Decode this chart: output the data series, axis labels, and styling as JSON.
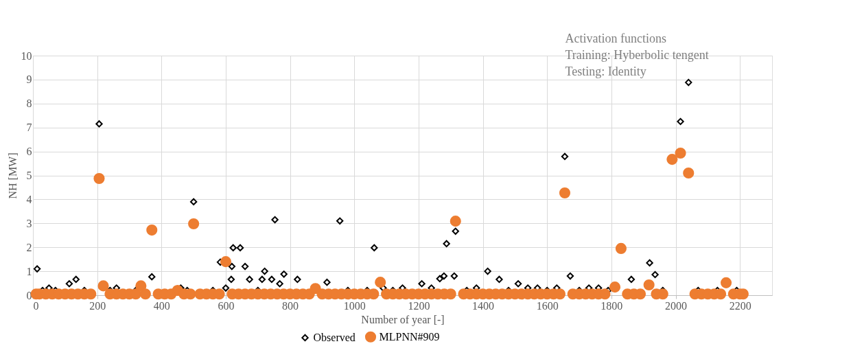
{
  "chart_data": {
    "type": "scatter",
    "xlabel": "Number of year [-]",
    "ylabel": "NH [MW]",
    "annotations": [
      "Activation functions",
      "Training: Hyberbolic tengent",
      "Testing: Identity"
    ],
    "xlim": [
      0,
      2300
    ],
    "xticks": [
      0,
      200,
      400,
      600,
      800,
      1000,
      1200,
      1400,
      1600,
      1800,
      2000,
      2200
    ],
    "ylim": [
      0,
      10
    ],
    "yticks": [
      0,
      1,
      2,
      3,
      4,
      5,
      6,
      7,
      8,
      9,
      10
    ],
    "grid": true,
    "legend": "bottom",
    "series": [
      {
        "name": "Observed",
        "color": "#000000",
        "marker": "diamond",
        "x": [
          13,
          30,
          50,
          70,
          113,
          134,
          160,
          206,
          240,
          260,
          320,
          370,
          460,
          480,
          500,
          560,
          583,
          600,
          617,
          619,
          623,
          645,
          660,
          674,
          700,
          713,
          721,
          743,
          753,
          768,
          781,
          823,
          915,
          955,
          980,
          1040,
          1062,
          1090,
          1120,
          1150,
          1210,
          1240,
          1266,
          1279,
          1287,
          1311,
          1315,
          1350,
          1380,
          1415,
          1451,
          1480,
          1510,
          1540,
          1570,
          1600,
          1630,
          1655,
          1672,
          1700,
          1730,
          1760,
          1790,
          1862,
          1919,
          1936,
          1960,
          2015,
          2040,
          2070,
          2130,
          2190
        ],
        "values": [
          1.1,
          0.2,
          0.3,
          0.2,
          0.48,
          0.66,
          0.2,
          7.15,
          0.2,
          0.3,
          0.2,
          0.77,
          0.3,
          0.2,
          3.9,
          0.2,
          1.38,
          0.3,
          0.66,
          1.2,
          1.98,
          1.98,
          1.2,
          0.66,
          0.2,
          0.66,
          1.0,
          0.66,
          3.15,
          0.48,
          0.88,
          0.66,
          0.54,
          3.1,
          0.2,
          0.2,
          1.98,
          0.3,
          0.2,
          0.3,
          0.48,
          0.3,
          0.69,
          0.8,
          2.15,
          0.8,
          2.67,
          0.2,
          0.3,
          1.0,
          0.66,
          0.2,
          0.48,
          0.3,
          0.3,
          0.2,
          0.3,
          5.79,
          0.8,
          0.2,
          0.3,
          0.3,
          0.2,
          0.66,
          1.35,
          0.86,
          0.2,
          7.25,
          8.88,
          0.2,
          0.2,
          0.2
        ]
      },
      {
        "name": "MLPNN#909",
        "color": "#ed7d31",
        "marker": "circle",
        "x": [
          10,
          20,
          40,
          60,
          80,
          100,
          120,
          140,
          160,
          180,
          206,
          219,
          240,
          260,
          280,
          300,
          320,
          336,
          350,
          370,
          390,
          410,
          430,
          450,
          470,
          490,
          500,
          520,
          540,
          560,
          580,
          600,
          620,
          640,
          660,
          680,
          700,
          720,
          740,
          760,
          780,
          800,
          820,
          840,
          860,
          879,
          900,
          920,
          940,
          960,
          980,
          1000,
          1020,
          1040,
          1060,
          1081,
          1100,
          1120,
          1140,
          1160,
          1180,
          1200,
          1220,
          1240,
          1260,
          1280,
          1300,
          1315,
          1340,
          1360,
          1380,
          1400,
          1420,
          1440,
          1460,
          1480,
          1500,
          1520,
          1540,
          1560,
          1580,
          1600,
          1620,
          1640,
          1655,
          1680,
          1700,
          1720,
          1740,
          1760,
          1780,
          1811,
          1830,
          1850,
          1870,
          1890,
          1917,
          1940,
          1960,
          1989,
          2015,
          2040,
          2060,
          2080,
          2100,
          2120,
          2140,
          2157,
          2180,
          2200,
          2210
        ],
        "values": [
          0.05,
          0.05,
          0.05,
          0.05,
          0.05,
          0.05,
          0.05,
          0.05,
          0.05,
          0.05,
          4.87,
          0.39,
          0.05,
          0.05,
          0.05,
          0.05,
          0.05,
          0.39,
          0.05,
          2.72,
          0.05,
          0.05,
          0.05,
          0.2,
          0.05,
          0.05,
          2.98,
          0.05,
          0.05,
          0.05,
          0.05,
          1.4,
          0.05,
          0.05,
          0.05,
          0.05,
          0.05,
          0.05,
          0.05,
          0.05,
          0.05,
          0.05,
          0.05,
          0.05,
          0.05,
          0.28,
          0.05,
          0.05,
          0.05,
          0.05,
          0.05,
          0.05,
          0.05,
          0.05,
          0.05,
          0.54,
          0.05,
          0.05,
          0.05,
          0.05,
          0.05,
          0.05,
          0.05,
          0.05,
          0.05,
          0.05,
          0.05,
          3.09,
          0.05,
          0.05,
          0.05,
          0.05,
          0.05,
          0.05,
          0.05,
          0.05,
          0.05,
          0.05,
          0.05,
          0.05,
          0.05,
          0.05,
          0.05,
          0.05,
          4.27,
          0.05,
          0.05,
          0.05,
          0.05,
          0.05,
          0.05,
          0.34,
          1.95,
          0.05,
          0.05,
          0.05,
          0.43,
          0.05,
          0.05,
          5.67,
          5.93,
          5.1,
          0.05,
          0.05,
          0.05,
          0.05,
          0.05,
          0.52,
          0.05,
          0.05,
          0.05
        ]
      }
    ]
  }
}
